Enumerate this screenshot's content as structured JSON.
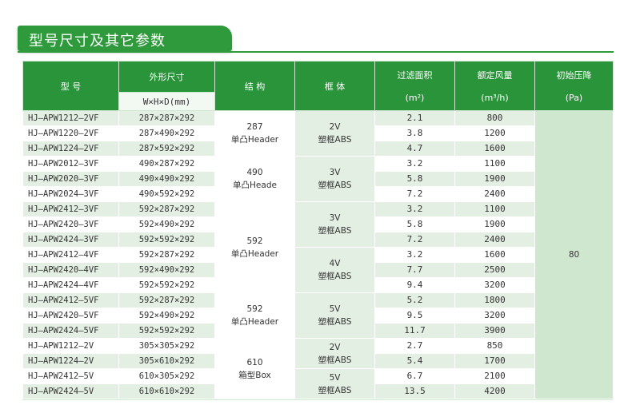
{
  "title": "型号尺寸及其它参数",
  "headers": {
    "model": "型 号",
    "dimensions": "外形尺寸",
    "dimensions_sub": "W×H×D(mm)",
    "structure": "结 构",
    "frame": "框 体",
    "filter_area": "过滤面积",
    "filter_area_unit": "(m²)",
    "airflow": "额定风量",
    "airflow_unit": "(m³/h)",
    "pressure": "初始压降",
    "pressure_unit": "(Pa)"
  },
  "rows": [
    {
      "model": "HJ–APW1212–2VF",
      "dim": "287×287×292",
      "area": "2.1",
      "flow": "800"
    },
    {
      "model": "HJ–APW1220–2VF",
      "dim": "287×490×292",
      "area": "3.8",
      "flow": "1200"
    },
    {
      "model": "HJ–APW1224–2VF",
      "dim": "287×592×292",
      "area": "4.7",
      "flow": "1600"
    },
    {
      "model": "HJ–APW2012–3VF",
      "dim": "490×287×292",
      "area": "3.2",
      "flow": "1100"
    },
    {
      "model": "HJ–APW2020–3VF",
      "dim": "490×490×292",
      "area": "5.8",
      "flow": "1900"
    },
    {
      "model": "HJ–APW2024–3VF",
      "dim": "490×592×292",
      "area": "7.2",
      "flow": "2400"
    },
    {
      "model": "HJ–APW2412–3VF",
      "dim": "592×287×292",
      "area": "3.2",
      "flow": "1100"
    },
    {
      "model": "HJ–APW2420–3VF",
      "dim": "592×490×292",
      "area": "5.8",
      "flow": "1900"
    },
    {
      "model": "HJ–APW2424–3VF",
      "dim": "592×592×292",
      "area": "7.2",
      "flow": "2400"
    },
    {
      "model": "HJ–APW2412–4VF",
      "dim": "592×287×292",
      "area": "3.2",
      "flow": "1600"
    },
    {
      "model": "HJ–APW2420–4VF",
      "dim": "592×490×292",
      "area": "7.7",
      "flow": "2500"
    },
    {
      "model": "HJ–APW2424–4VF",
      "dim": "592×592×292",
      "area": "9.4",
      "flow": "3200"
    },
    {
      "model": "HJ–APW2412–5VF",
      "dim": "592×287×292",
      "area": "5.2",
      "flow": "1800"
    },
    {
      "model": "HJ–APW2420–5VF",
      "dim": "592×490×292",
      "area": "9.5",
      "flow": "3200"
    },
    {
      "model": "HJ–APW2424–5VF",
      "dim": "592×592×292",
      "area": "11.7",
      "flow": "3900"
    },
    {
      "model": "HJ–APW1212–2V",
      "dim": "305×305×292",
      "area": "2.7",
      "flow": "850"
    },
    {
      "model": "HJ–APW1224–2V",
      "dim": "305×610×292",
      "area": "5.4",
      "flow": "1700"
    },
    {
      "model": "HJ–APW2412–5V",
      "dim": "610×305×292",
      "area": "6.7",
      "flow": "2100"
    },
    {
      "model": "HJ–APW2424–5V",
      "dim": "610×610×292",
      "area": "13.5",
      "flow": "4200"
    }
  ],
  "structure_groups": [
    {
      "line1": "287",
      "line2": "单凸Header"
    },
    {
      "line1": "490",
      "line2": "单凸Heade"
    },
    {
      "line1": "592",
      "line2": "单凸Header"
    },
    {
      "line1": "592",
      "line2": "单凸Header"
    },
    {
      "line1": "610",
      "line2": "箱型Box"
    }
  ],
  "frame_groups": [
    {
      "line1": "2V",
      "line2": "塑框ABS"
    },
    {
      "line1": "3V",
      "line2": "塑框ABS"
    },
    {
      "line1": "3V",
      "line2": "塑框ABS"
    },
    {
      "line1": "4V",
      "line2": "塑框ABS"
    },
    {
      "line1": "5V",
      "line2": "塑框ABS"
    },
    {
      "line1": "2V",
      "line2": "塑框ABS"
    },
    {
      "line1": "5V",
      "line2": "塑框ABS"
    }
  ],
  "pressure_value": "80",
  "colors": {
    "brand_green": "#2f9a3c",
    "header_green": "#2a943a",
    "table_bg": "#cfe6cf"
  }
}
